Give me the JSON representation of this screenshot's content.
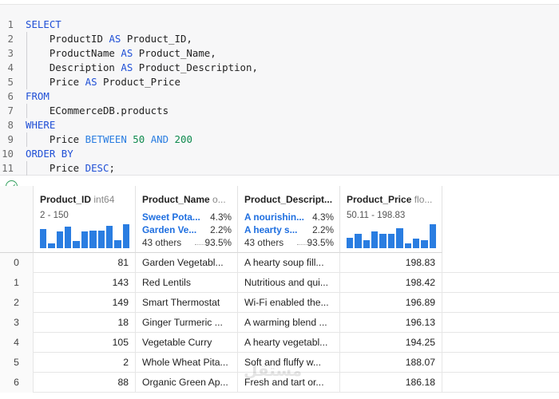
{
  "editor": {
    "lines": [
      {
        "no": "1",
        "tokens": [
          {
            "t": "SELECT",
            "c": "kw"
          }
        ]
      },
      {
        "no": "2",
        "tokens": [
          {
            "t": "    ProductID ",
            "c": "id"
          },
          {
            "t": "AS",
            "c": "kw"
          },
          {
            "t": " Product_ID,",
            "c": "id"
          }
        ]
      },
      {
        "no": "3",
        "tokens": [
          {
            "t": "    ProductName ",
            "c": "id"
          },
          {
            "t": "AS",
            "c": "kw"
          },
          {
            "t": " Product_Name,",
            "c": "id"
          }
        ]
      },
      {
        "no": "4",
        "tokens": [
          {
            "t": "    Description ",
            "c": "id"
          },
          {
            "t": "AS",
            "c": "kw"
          },
          {
            "t": " Product_Description,",
            "c": "id"
          }
        ]
      },
      {
        "no": "5",
        "tokens": [
          {
            "t": "    Price ",
            "c": "id"
          },
          {
            "t": "AS",
            "c": "kw"
          },
          {
            "t": " Product_Price",
            "c": "id"
          }
        ]
      },
      {
        "no": "6",
        "tokens": [
          {
            "t": "FROM",
            "c": "kw"
          }
        ]
      },
      {
        "no": "7",
        "tokens": [
          {
            "t": "    ECommerceDB.products",
            "c": "id"
          }
        ]
      },
      {
        "no": "8",
        "tokens": [
          {
            "t": "WHERE",
            "c": "kw"
          }
        ]
      },
      {
        "no": "9",
        "tokens": [
          {
            "t": "    Price ",
            "c": "id"
          },
          {
            "t": "BETWEEN",
            "c": "fn"
          },
          {
            "t": " ",
            "c": "id"
          },
          {
            "t": "50",
            "c": "num"
          },
          {
            "t": " ",
            "c": "id"
          },
          {
            "t": "AND",
            "c": "fn"
          },
          {
            "t": " ",
            "c": "id"
          },
          {
            "t": "200",
            "c": "num"
          }
        ]
      },
      {
        "no": "10",
        "tokens": [
          {
            "t": "ORDER BY",
            "c": "kw"
          }
        ]
      },
      {
        "no": "11",
        "tokens": [
          {
            "t": "    Price ",
            "c": "id"
          },
          {
            "t": "DESC",
            "c": "kw"
          },
          {
            "t": ";",
            "c": "id"
          }
        ]
      }
    ]
  },
  "columns": [
    {
      "name": "Product_ID",
      "type": "int64",
      "kind": "numeric",
      "range": "2 - 150",
      "histogram": [
        0.8,
        0.2,
        0.7,
        0.9,
        0.3,
        0.7,
        0.75,
        0.75,
        0.95,
        0.35,
        1.0
      ]
    },
    {
      "name": "Product_Name",
      "type": "o...",
      "kind": "categorical",
      "categories": [
        {
          "label": "Sweet Pota...",
          "pct": "4.3%"
        },
        {
          "label": "Garden Ve...",
          "pct": "2.2%"
        }
      ],
      "others": {
        "label": "43 others",
        "pct": "93.5%"
      }
    },
    {
      "name": "Product_Descript...",
      "type": "",
      "kind": "categorical",
      "categories": [
        {
          "label": "A nourishin...",
          "pct": "4.3%"
        },
        {
          "label": "A hearty s...",
          "pct": "2.2%"
        }
      ],
      "others": {
        "label": "43 others",
        "pct": "93.5%"
      }
    },
    {
      "name": "Product_Price",
      "type": "flo...",
      "kind": "numeric",
      "range": "50.11 - 198.83",
      "histogram": [
        0.45,
        0.6,
        0.35,
        0.7,
        0.6,
        0.6,
        0.85,
        0.2,
        0.4,
        0.35,
        1.0
      ]
    }
  ],
  "rows": [
    {
      "index": "0",
      "id": "81",
      "name": "Garden Vegetabl...",
      "desc": "A hearty soup fill...",
      "price": "198.83"
    },
    {
      "index": "1",
      "id": "143",
      "name": "Red Lentils",
      "desc": "Nutritious and qui...",
      "price": "198.42"
    },
    {
      "index": "2",
      "id": "149",
      "name": "Smart Thermostat",
      "desc": "Wi-Fi enabled the...",
      "price": "196.89"
    },
    {
      "index": "3",
      "id": "18",
      "name": "Ginger Turmeric ...",
      "desc": "A warming blend ...",
      "price": "196.13"
    },
    {
      "index": "4",
      "id": "105",
      "name": "Vegetable Curry",
      "desc": "A hearty vegetabl...",
      "price": "194.25"
    },
    {
      "index": "5",
      "id": "2",
      "name": "Whole Wheat Pita...",
      "desc": "Soft and fluffy w...",
      "price": "188.07"
    },
    {
      "index": "6",
      "id": "88",
      "name": "Organic Green Ap...",
      "desc": "Fresh and tart or...",
      "price": "186.18"
    }
  ],
  "colors": {
    "accent": "#2a7de1",
    "keyword": "#1f4fd6",
    "number": "#0e8a4e",
    "success": "#2e9e5b"
  },
  "icons": {
    "status": "check-circle-icon"
  }
}
